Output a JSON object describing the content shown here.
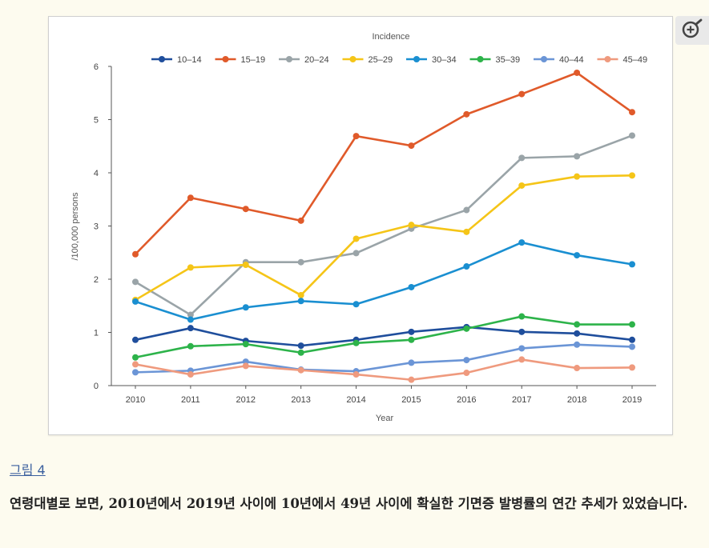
{
  "figure_link": "그림 4",
  "caption": "연령대별로 보면, 2010년에서 2019년 사이에 10년에서 49년 사이에 확실한 기면증 발병률의 연간 추세가 있었습니다.",
  "zoom_icon": "zoom-in-icon",
  "chart_data": {
    "type": "line",
    "title": "Incidence",
    "xlabel": "Year",
    "ylabel": "/100,000 persons",
    "x": [
      2010,
      2011,
      2012,
      2013,
      2014,
      2015,
      2016,
      2017,
      2018,
      2019
    ],
    "ylim": [
      0,
      6
    ],
    "yticks": [
      0,
      1,
      2,
      3,
      4,
      5,
      6
    ],
    "grid": false,
    "legend_position": "top",
    "series": [
      {
        "name": "10–14",
        "color": "#1f4e9c",
        "values": [
          0.86,
          1.08,
          0.84,
          0.75,
          0.86,
          1.01,
          1.1,
          1.01,
          0.98,
          0.86
        ]
      },
      {
        "name": "15–19",
        "color": "#e05a2a",
        "values": [
          2.47,
          3.53,
          3.32,
          3.1,
          4.69,
          4.51,
          5.1,
          5.48,
          5.88,
          5.14
        ]
      },
      {
        "name": "20–24",
        "color": "#9aa4a8",
        "values": [
          1.95,
          1.33,
          2.32,
          2.32,
          2.49,
          2.95,
          3.3,
          4.28,
          4.31,
          4.7
        ]
      },
      {
        "name": "25–29",
        "color": "#f5c518",
        "values": [
          1.61,
          2.22,
          2.27,
          1.7,
          2.76,
          3.02,
          2.89,
          3.76,
          3.93,
          3.95
        ]
      },
      {
        "name": "30–34",
        "color": "#1a8fd1",
        "values": [
          1.58,
          1.24,
          1.47,
          1.59,
          1.53,
          1.85,
          2.24,
          2.69,
          2.45,
          2.28
        ]
      },
      {
        "name": "35–39",
        "color": "#2db34a",
        "values": [
          0.53,
          0.74,
          0.78,
          0.62,
          0.8,
          0.86,
          1.07,
          1.3,
          1.15,
          1.15
        ]
      },
      {
        "name": "40–44",
        "color": "#6b95d6",
        "values": [
          0.25,
          0.28,
          0.45,
          0.3,
          0.27,
          0.43,
          0.48,
          0.7,
          0.77,
          0.73
        ]
      },
      {
        "name": "45–49",
        "color": "#ef9a7e",
        "values": [
          0.4,
          0.21,
          0.37,
          0.29,
          0.21,
          0.11,
          0.24,
          0.49,
          0.33,
          0.34
        ]
      }
    ]
  }
}
